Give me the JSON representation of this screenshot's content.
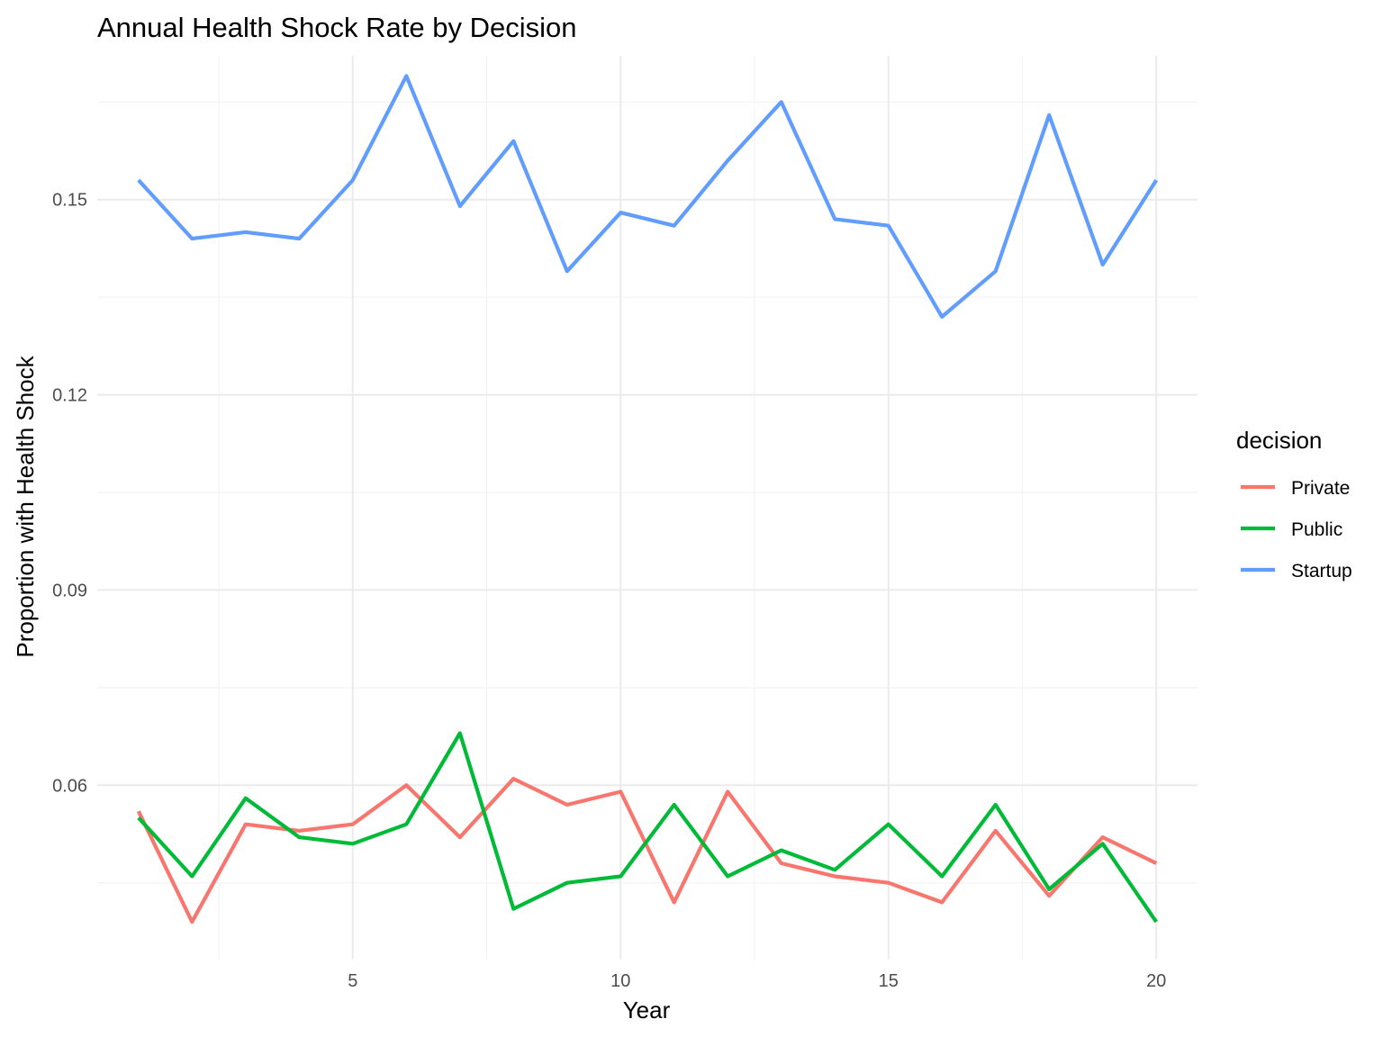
{
  "chart_data": {
    "type": "line",
    "title": "Annual Health Shock Rate by Decision",
    "xlabel": "Year",
    "ylabel": "Proportion with Health Shock",
    "x": [
      1,
      2,
      3,
      4,
      5,
      6,
      7,
      8,
      9,
      10,
      11,
      12,
      13,
      14,
      15,
      16,
      17,
      18,
      19,
      20
    ],
    "xlim": [
      0.23,
      20.77
    ],
    "ylim": [
      0.0332,
      0.1721
    ],
    "x_ticks": [
      5,
      10,
      15,
      20
    ],
    "x_tick_labels": [
      "5",
      "10",
      "15",
      "20"
    ],
    "x_minor_ticks": [
      2.5,
      7.5,
      12.5,
      17.5
    ],
    "y_ticks": [
      0.06,
      0.09,
      0.12,
      0.15
    ],
    "y_tick_labels": [
      "0.06",
      "0.09",
      "0.12",
      "0.15"
    ],
    "y_minor_ticks": [
      0.045,
      0.075,
      0.105,
      0.135,
      0.165
    ],
    "grid": true,
    "legend": {
      "title": "decision",
      "position": "right"
    },
    "series": [
      {
        "name": "Private",
        "color": "#F8766D",
        "values": [
          0.056,
          0.039,
          0.054,
          0.053,
          0.054,
          0.06,
          0.052,
          0.061,
          0.057,
          0.059,
          0.042,
          0.059,
          0.048,
          0.046,
          0.045,
          0.042,
          0.053,
          0.043,
          0.052,
          0.048
        ]
      },
      {
        "name": "Public",
        "color": "#00BA38",
        "values": [
          0.055,
          0.046,
          0.058,
          0.052,
          0.051,
          0.054,
          0.068,
          0.041,
          0.045,
          0.046,
          0.057,
          0.046,
          0.05,
          0.047,
          0.054,
          0.046,
          0.057,
          0.044,
          0.051,
          0.039
        ]
      },
      {
        "name": "Startup",
        "color": "#619CFF",
        "values": [
          0.153,
          0.144,
          0.145,
          0.144,
          0.153,
          0.169,
          0.149,
          0.159,
          0.139,
          0.148,
          0.146,
          0.156,
          0.165,
          0.147,
          0.146,
          0.132,
          0.139,
          0.163,
          0.14,
          0.153
        ]
      }
    ]
  }
}
